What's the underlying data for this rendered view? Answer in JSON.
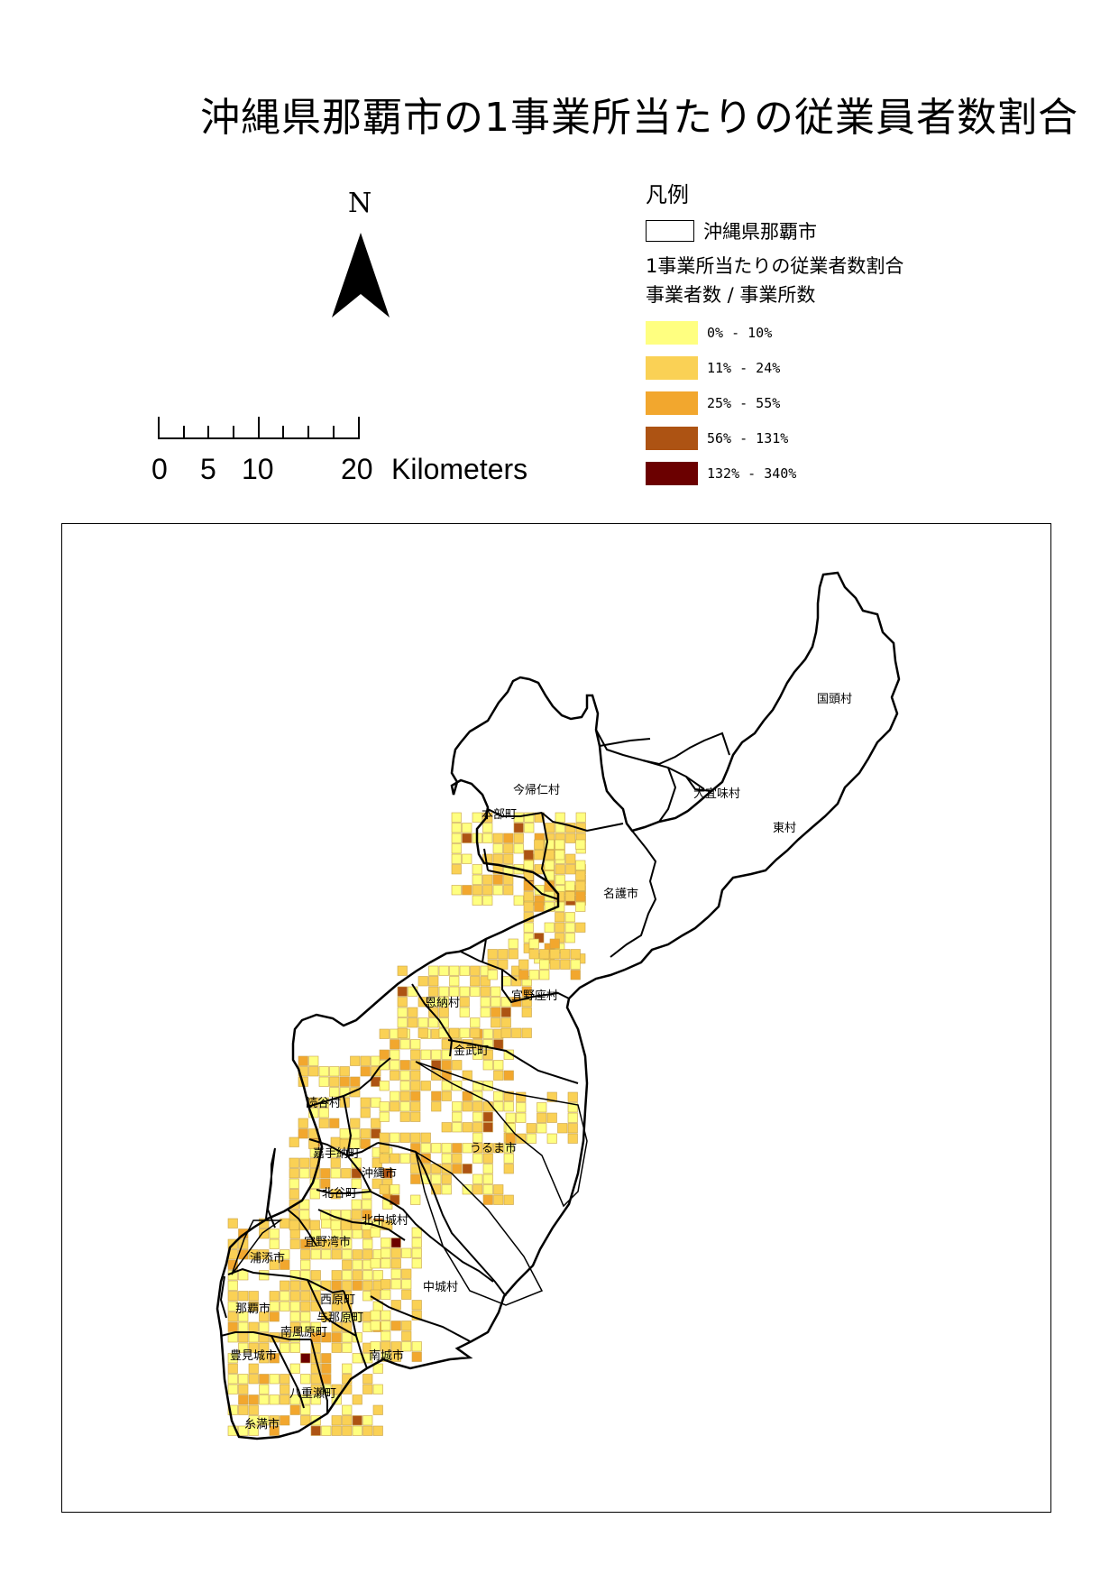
{
  "title": "沖縄県那覇市の1事業所当たりの従業員者数割合",
  "north_arrow": {
    "label": "N"
  },
  "scale_bar": {
    "ticks": [
      "0",
      "5",
      "10",
      "20"
    ],
    "unit": "Kilometers"
  },
  "legend": {
    "title": "凡例",
    "boundary_label": "沖縄県那覇市",
    "layer_title": "1事業所当たりの従業者数割合",
    "field_label": "事業者数 / 事業所数",
    "classes": [
      {
        "label": "0% - 10%",
        "color": "#ffff80"
      },
      {
        "label": "11% - 24%",
        "color": "#fad155"
      },
      {
        "label": "25% - 55%",
        "color": "#f2a72e"
      },
      {
        "label": "56% - 131%",
        "color": "#ad5313"
      },
      {
        "label": "132% - 340%",
        "color": "#6b0000"
      }
    ]
  },
  "places": [
    "国頭村",
    "大宜味村",
    "東村",
    "今帰仁村",
    "本部町",
    "名護市",
    "恩納村",
    "宜野座村",
    "金武町",
    "読谷村",
    "うるま市",
    "嘉手納町",
    "沖縄市",
    "北谷町",
    "北中城村",
    "宜野湾市",
    "中城村",
    "浦添市",
    "西原町",
    "那覇市",
    "与那原町",
    "南風原町",
    "豊見城市",
    "南城市",
    "八重瀬町",
    "糸満市"
  ]
}
